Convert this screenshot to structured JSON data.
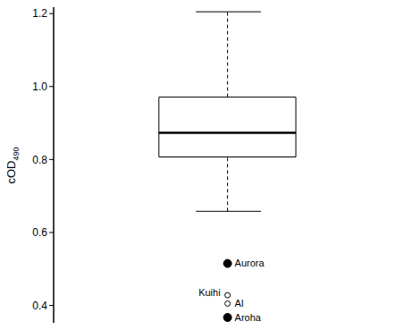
{
  "chart_data": {
    "type": "box",
    "y_label": {
      "text": "cOD",
      "subscript": "490"
    },
    "box": {
      "whisker_low": 0.658,
      "q1": 0.807,
      "median": 0.873,
      "q3": 0.971,
      "whisker_high": 1.205
    },
    "outliers": [
      {
        "name": "Aurora",
        "value": 0.515,
        "marker": "filled"
      },
      {
        "name": "Kuihi",
        "value": 0.428,
        "marker": "open"
      },
      {
        "name": "Al",
        "value": 0.405,
        "marker": "open"
      },
      {
        "name": "Aroha",
        "value": 0.367,
        "marker": "filled"
      }
    ],
    "ylim": [
      0.34,
      1.225
    ],
    "yticks": [
      0.4,
      0.6,
      0.8,
      {
        "value": 1,
        "label": "1.0"
      },
      1.2
    ],
    "tick_labels": "y",
    "color": "#000000"
  }
}
